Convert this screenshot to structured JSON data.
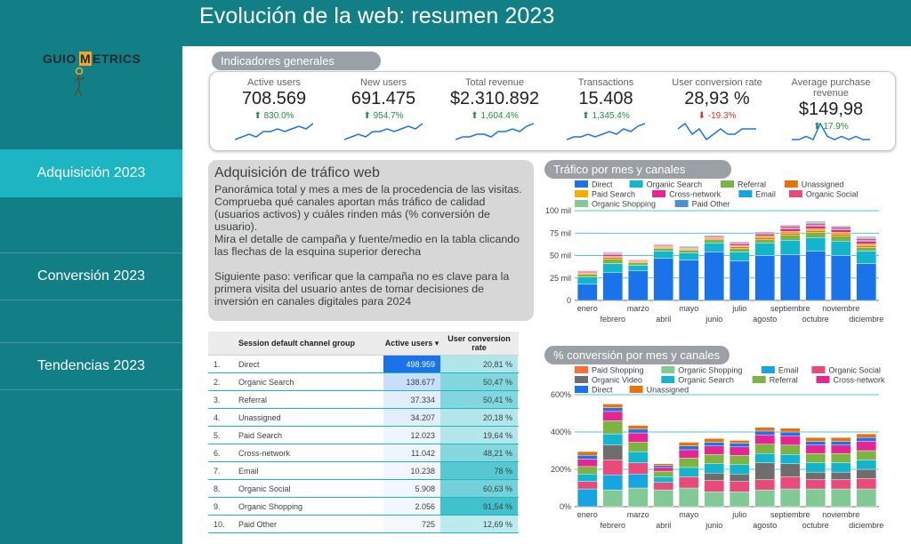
{
  "header": {
    "title": "Evolución de la web: resumen 2023"
  },
  "logo": {
    "text_left": "GUIO",
    "text_mid": "M",
    "text_right": "ETRICS"
  },
  "sidebar": {
    "items": [
      {
        "label": "Adquisición 2023"
      },
      {
        "label": "Conversión 2023"
      },
      {
        "label": "Tendencias 2023"
      }
    ]
  },
  "kpis": {
    "section_label": "Indicadores generales",
    "items": [
      {
        "label": "Active users",
        "value": "708.569",
        "delta": "830.0%",
        "direction": "up",
        "spark": [
          3,
          4,
          5,
          4,
          6,
          6,
          7,
          6,
          7,
          8,
          7,
          9
        ]
      },
      {
        "label": "New users",
        "value": "691.475",
        "delta": "954.7%",
        "direction": "up",
        "spark": [
          3,
          4,
          5,
          4,
          6,
          6,
          7,
          6,
          7,
          8,
          7,
          9
        ]
      },
      {
        "label": "Total revenue",
        "value": "$2.310.892",
        "delta": "1,604.4%",
        "direction": "up",
        "spark": [
          2,
          3,
          3,
          4,
          4,
          3,
          5,
          5,
          6,
          5,
          7,
          8
        ]
      },
      {
        "label": "Transactions",
        "value": "15.408",
        "delta": "1,345.4%",
        "direction": "up",
        "spark": [
          2,
          3,
          3,
          4,
          3,
          4,
          5,
          4,
          6,
          5,
          7,
          8
        ]
      },
      {
        "label": "User conversion rate",
        "value": "28,93 %",
        "delta": "-19.3%",
        "direction": "down",
        "spark": [
          6,
          7,
          5,
          6,
          4,
          5,
          6,
          5,
          5,
          6,
          6,
          6
        ]
      },
      {
        "label": "Average purchase revenue",
        "value": "$149,98",
        "delta": "17.9%",
        "direction": "up",
        "spark": [
          3,
          3,
          4,
          3,
          8,
          4,
          3,
          4,
          3,
          4,
          3,
          3
        ]
      }
    ]
  },
  "description": {
    "title": "Adquisición de tráfico web",
    "paragraph1": "Panorámica total y mes a mes de la procedencia de las visitas. Comprueba qué canales aportan más tráfico de calidad (usuarios activos) y cuáles rinden más (% conversión de usuario).",
    "paragraph2": "Mira el detalle de campaña y fuente/medio en la tabla clicando las flechas de la esquina superior derecha",
    "paragraph3": "Siguiente paso: verificar que la campaña no es clave para la primera visita del usuario antes de tomar decisiones de inversión en canales digitales para 2024"
  },
  "table": {
    "headers": {
      "channel": "Session default channel group",
      "users": "Active users ▾",
      "conversion": "User conversion rate"
    },
    "rows": [
      {
        "idx": "1.",
        "channel": "Direct",
        "users": "498.959",
        "conversion": "20,81 %"
      },
      {
        "idx": "2.",
        "channel": "Organic Search",
        "users": "138.677",
        "conversion": "50,47 %"
      },
      {
        "idx": "3.",
        "channel": "Referral",
        "users": "37.334",
        "conversion": "50,41 %"
      },
      {
        "idx": "4.",
        "channel": "Unassigned",
        "users": "34.207",
        "conversion": "20,18 %"
      },
      {
        "idx": "5.",
        "channel": "Paid Search",
        "users": "12.023",
        "conversion": "19,64 %"
      },
      {
        "idx": "6.",
        "channel": "Cross-network",
        "users": "11.042",
        "conversion": "48,21 %"
      },
      {
        "idx": "7.",
        "channel": "Email",
        "users": "10.238",
        "conversion": "78 %"
      },
      {
        "idx": "8.",
        "channel": "Organic Social",
        "users": "5.908",
        "conversion": "60,63 %"
      },
      {
        "idx": "9.",
        "channel": "Organic Shopping",
        "users": "2.056",
        "conversion": "91,54 %"
      },
      {
        "idx": "10.",
        "channel": "Paid Other",
        "users": "725",
        "conversion": "12,69 %"
      }
    ]
  },
  "colors": {
    "Direct": "#1a73e8",
    "Organic Search": "#12b5cb",
    "Referral": "#7cb342",
    "Unassigned": "#e8710a",
    "Paid Search": "#f9ab00",
    "Cross-network": "#e52592",
    "Email": "#16a5e0",
    "Organic Social": "#e84a7a",
    "Organic Shopping": "#81c995",
    "Paid Other": "#4a90d9",
    "Paid Shopping": "#ff6d3a",
    "Organic Video": "#6e6e6e"
  },
  "chart_data": [
    {
      "type": "bar",
      "title": "Tráfico por mes y canales",
      "stacked": true,
      "categories": [
        "enero",
        "febrero",
        "marzo",
        "abril",
        "mayo",
        "junio",
        "julio",
        "agosto",
        "septiembre",
        "octubre",
        "noviembre",
        "diciembre"
      ],
      "yticks": [
        "0",
        "25 mil",
        "50 mil",
        "75 mil",
        "100 mil"
      ],
      "ylim": [
        0,
        100
      ],
      "series": [
        {
          "name": "Direct",
          "values": [
            18,
            31,
            33,
            47,
            45,
            54,
            44,
            50,
            51,
            55,
            50,
            41
          ]
        },
        {
          "name": "Organic Search",
          "values": [
            8,
            10,
            6,
            8,
            8,
            10,
            10,
            14,
            16,
            15,
            16,
            14
          ]
        },
        {
          "name": "Referral",
          "values": [
            3,
            5,
            3,
            3,
            3,
            4,
            4,
            4,
            6,
            6,
            6,
            4
          ]
        },
        {
          "name": "Unassigned",
          "values": [
            1,
            2,
            1,
            1,
            1,
            1,
            2,
            2,
            2,
            2,
            2,
            2
          ]
        },
        {
          "name": "Paid Search",
          "values": [
            1,
            1,
            1,
            1,
            1,
            1,
            1,
            2,
            2,
            2,
            2,
            2
          ]
        },
        {
          "name": "Cross-network",
          "values": [
            1,
            2,
            1,
            1,
            1,
            1,
            2,
            2,
            3,
            3,
            3,
            3
          ]
        },
        {
          "name": "Email",
          "values": [
            0,
            1,
            0,
            0,
            1,
            0,
            1,
            1,
            1,
            1,
            1,
            1
          ]
        },
        {
          "name": "Organic Social",
          "values": [
            1,
            1,
            0,
            1,
            0,
            1,
            1,
            1,
            2,
            2,
            2,
            2
          ]
        },
        {
          "name": "Organic Shopping",
          "values": [
            0,
            1,
            0,
            0,
            0,
            0,
            0,
            0,
            1,
            1,
            1,
            1
          ]
        },
        {
          "name": "Paid Other",
          "values": [
            0,
            0,
            0,
            0,
            0,
            0,
            0,
            0,
            0,
            1,
            0,
            1
          ]
        }
      ]
    },
    {
      "type": "bar",
      "title": "% conversión por mes y canales",
      "stacked": true,
      "categories": [
        "enero",
        "febrero",
        "marzo",
        "abril",
        "mayo",
        "junio",
        "julio",
        "agosto",
        "septiembre",
        "octubre",
        "noviembre",
        "diciembre"
      ],
      "yticks": [
        "0%",
        "200%",
        "400%",
        "600%"
      ],
      "ylim": [
        0,
        600
      ],
      "series": [
        {
          "name": "Paid Shopping",
          "values": [
            0,
            0,
            0,
            0,
            0,
            0,
            0,
            0,
            0,
            0,
            0,
            0
          ]
        },
        {
          "name": "Organic Shopping",
          "values": [
            0,
            90,
            100,
            90,
            100,
            80,
            80,
            90,
            95,
            95,
            95,
            95
          ]
        },
        {
          "name": "Email",
          "values": [
            95,
            80,
            75,
            0,
            0,
            0,
            0,
            0,
            0,
            0,
            0,
            0
          ]
        },
        {
          "name": "Organic Social",
          "values": [
            40,
            80,
            60,
            40,
            60,
            60,
            55,
            55,
            65,
            50,
            50,
            55
          ]
        },
        {
          "name": "Organic Video",
          "values": [
            0,
            80,
            0,
            0,
            0,
            40,
            40,
            90,
            70,
            40,
            40,
            50
          ]
        },
        {
          "name": "Organic Search",
          "values": [
            40,
            60,
            60,
            30,
            50,
            50,
            50,
            50,
            50,
            50,
            50,
            50
          ]
        },
        {
          "name": "Referral",
          "values": [
            40,
            70,
            50,
            30,
            50,
            50,
            50,
            50,
            50,
            50,
            50,
            50
          ]
        },
        {
          "name": "Cross-network",
          "values": [
            40,
            50,
            50,
            20,
            45,
            45,
            45,
            50,
            50,
            45,
            45,
            50
          ]
        },
        {
          "name": "Direct",
          "values": [
            20,
            20,
            20,
            10,
            20,
            20,
            20,
            20,
            20,
            20,
            20,
            20
          ]
        },
        {
          "name": "Unassigned",
          "values": [
            20,
            20,
            20,
            10,
            20,
            20,
            15,
            20,
            20,
            20,
            20,
            20
          ]
        }
      ]
    }
  ]
}
